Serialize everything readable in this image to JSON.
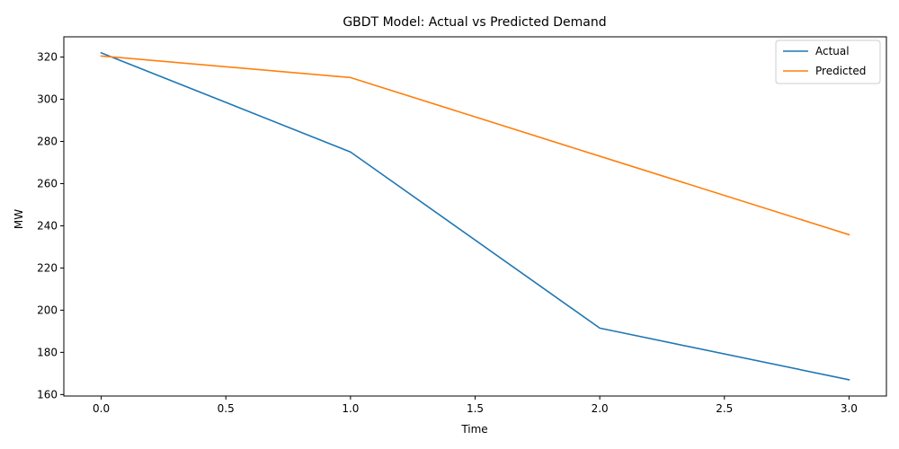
{
  "chart_data": {
    "type": "line",
    "title": "GBDT Model: Actual vs Predicted Demand",
    "xlabel": "Time",
    "ylabel": "MW",
    "x": [
      0,
      1,
      2,
      3
    ],
    "series": [
      {
        "name": "Actual",
        "values": [
          322.0,
          275.0,
          191.5,
          167.0
        ],
        "color": "#1f77b4"
      },
      {
        "name": "Predicted",
        "values": [
          320.5,
          310.3,
          273.0,
          235.8
        ],
        "color": "#ff7f0e"
      }
    ],
    "xlim": [
      -0.15,
      3.15
    ],
    "ylim": [
      159.3,
      329.6
    ],
    "xticks": [
      0.0,
      0.5,
      1.0,
      1.5,
      2.0,
      2.5,
      3.0
    ],
    "xtick_labels": [
      "0.0",
      "0.5",
      "1.0",
      "1.5",
      "2.0",
      "2.5",
      "3.0"
    ],
    "yticks": [
      160,
      180,
      200,
      220,
      240,
      260,
      280,
      300,
      320
    ],
    "ytick_labels": [
      "160",
      "180",
      "200",
      "220",
      "240",
      "260",
      "280",
      "300",
      "320"
    ],
    "grid": false,
    "legend_position": "top-right"
  }
}
